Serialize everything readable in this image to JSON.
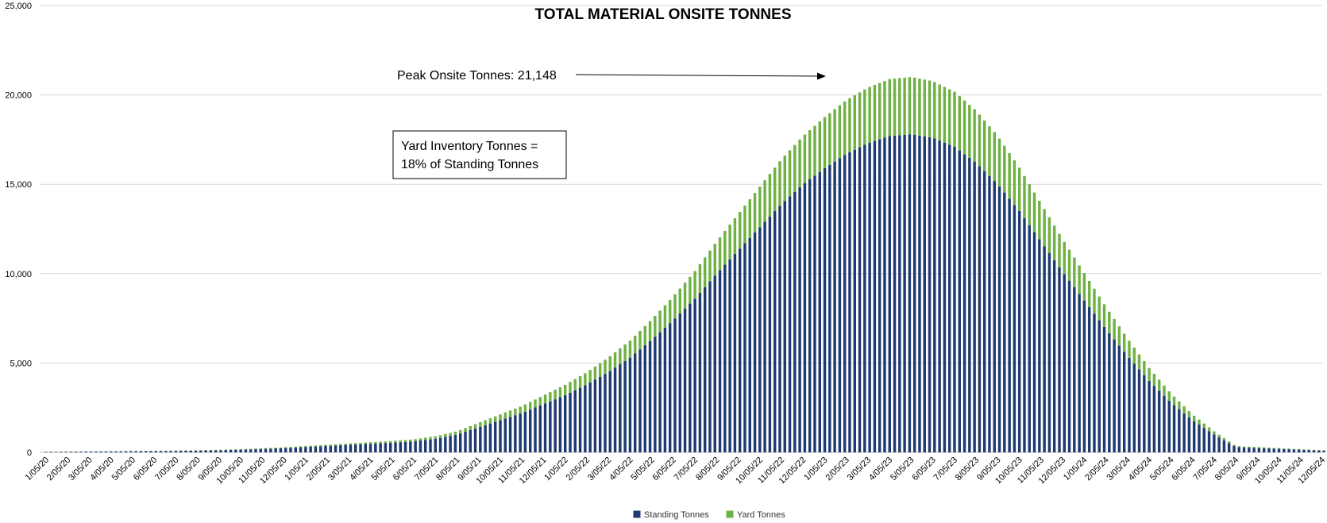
{
  "chart_data": {
    "type": "bar",
    "stacked": true,
    "title": "TOTAL MATERIAL ONSITE TONNES",
    "xlabel": "",
    "ylabel": "",
    "ylim": [
      0,
      25000
    ],
    "yticks": [
      0,
      5000,
      10000,
      15000,
      20000,
      25000
    ],
    "ytick_labels": [
      "0",
      "5,000",
      "10,000",
      "15,000",
      "20,000",
      "25,000"
    ],
    "grid": "horizontal",
    "legend_position": "bottom",
    "x_tick_labels": [
      "1/05/20",
      "2/05/20",
      "3/05/20",
      "4/05/20",
      "5/05/20",
      "6/05/20",
      "7/05/20",
      "8/05/20",
      "9/05/20",
      "10/05/20",
      "11/05/20",
      "12/05/20",
      "1/05/21",
      "2/05/21",
      "3/05/21",
      "4/05/21",
      "5/05/21",
      "6/05/21",
      "7/05/21",
      "8/05/21",
      "9/05/21",
      "10/05/21",
      "11/05/21",
      "12/05/21",
      "1/05/22",
      "2/05/22",
      "3/05/22",
      "4/05/22",
      "5/05/22",
      "6/05/22",
      "7/05/22",
      "8/05/22",
      "9/05/22",
      "10/05/22",
      "11/05/22",
      "12/05/22",
      "1/05/23",
      "2/05/23",
      "3/05/23",
      "4/05/23",
      "5/05/23",
      "6/05/23",
      "7/05/23",
      "8/05/23",
      "9/05/23",
      "10/05/23",
      "11/05/23",
      "12/05/23",
      "1/05/24",
      "2/05/24",
      "3/05/24",
      "4/05/24",
      "5/05/24",
      "6/05/24",
      "7/05/24",
      "8/05/24",
      "9/05/24",
      "10/05/24",
      "11/05/24",
      "12/05/24"
    ],
    "weeks_per_label": 4.3333,
    "series": [
      {
        "name": "Standing Tonnes",
        "color": "#1f3a73"
      },
      {
        "name": "Yard Tonnes",
        "color": "#70b144"
      }
    ],
    "yard_ratio": 0.18,
    "standing_curve_monthly": [
      30,
      40,
      45,
      55,
      65,
      75,
      85,
      100,
      120,
      150,
      190,
      240,
      300,
      360,
      420,
      480,
      540,
      620,
      760,
      1000,
      1400,
      1800,
      2200,
      2700,
      3200,
      3800,
      4500,
      5300,
      6300,
      7400,
      8600,
      10000,
      11300,
      12600,
      13900,
      15000,
      15900,
      16700,
      17300,
      17700,
      17800,
      17600,
      17100,
      16200,
      15000,
      13500,
      11800,
      10100,
      8500,
      6900,
      5400,
      4000,
      2800,
      1800,
      1000,
      300,
      250,
      200,
      150,
      100,
      60,
      40,
      20,
      0,
      0,
      0,
      0,
      0,
      0,
      0
    ]
  },
  "annotations": {
    "peak_label": "Peak Onsite Tonnes: 21,148",
    "peak_value": 21148,
    "box_line1": "Yard Inventory Tonnes =",
    "box_line2": "18% of Standing Tonnes"
  }
}
